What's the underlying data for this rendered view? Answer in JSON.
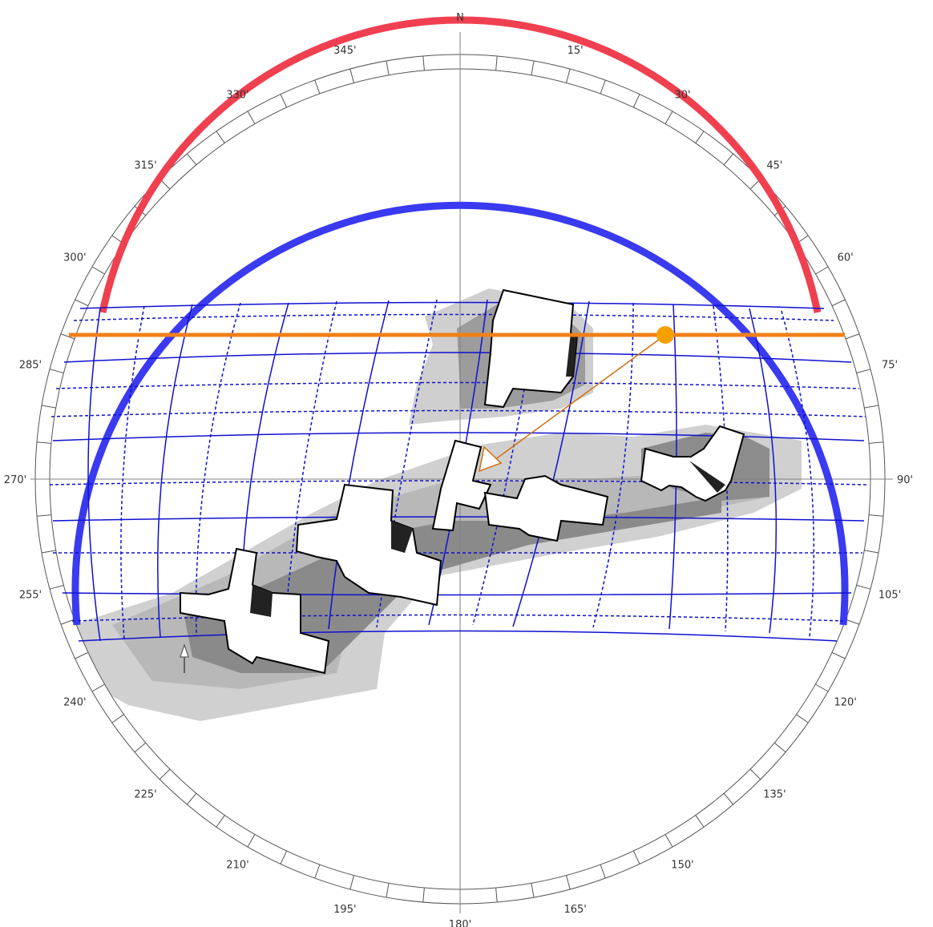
{
  "north_label": "N",
  "compass_labels": [
    {
      "deg": 15,
      "text": "15'"
    },
    {
      "deg": 30,
      "text": "30'"
    },
    {
      "deg": 45,
      "text": "45'"
    },
    {
      "deg": 60,
      "text": "60'"
    },
    {
      "deg": 75,
      "text": "75'"
    },
    {
      "deg": 90,
      "text": "90'"
    },
    {
      "deg": 105,
      "text": "105'"
    },
    {
      "deg": 120,
      "text": "120'"
    },
    {
      "deg": 135,
      "text": "135'"
    },
    {
      "deg": 150,
      "text": "150'"
    },
    {
      "deg": 165,
      "text": "165'"
    },
    {
      "deg": 180,
      "text": "180'"
    },
    {
      "deg": 195,
      "text": "195'"
    },
    {
      "deg": 210,
      "text": "210'"
    },
    {
      "deg": 225,
      "text": "225'"
    },
    {
      "deg": 240,
      "text": "240'"
    },
    {
      "deg": 255,
      "text": "255'"
    },
    {
      "deg": 270,
      "text": "270'"
    },
    {
      "deg": 285,
      "text": "285'"
    },
    {
      "deg": 300,
      "text": "300'"
    },
    {
      "deg": 315,
      "text": "315'"
    },
    {
      "deg": 330,
      "text": "330'"
    },
    {
      "deg": 345,
      "text": "345'"
    }
  ],
  "colors": {
    "outer_ring": "#555555",
    "crosshair": "#808080",
    "summer_path": "#3a3af0",
    "winter_path": "#f04050",
    "sun_grid": "#1010d0",
    "current_path": "#f08018",
    "sun_marker": "#f5a000",
    "building_fill": "#ffffff",
    "building_stroke": "#000000",
    "shadow": "#b0b0b0"
  },
  "current_sun": {
    "azimuth_deg": 62
  }
}
